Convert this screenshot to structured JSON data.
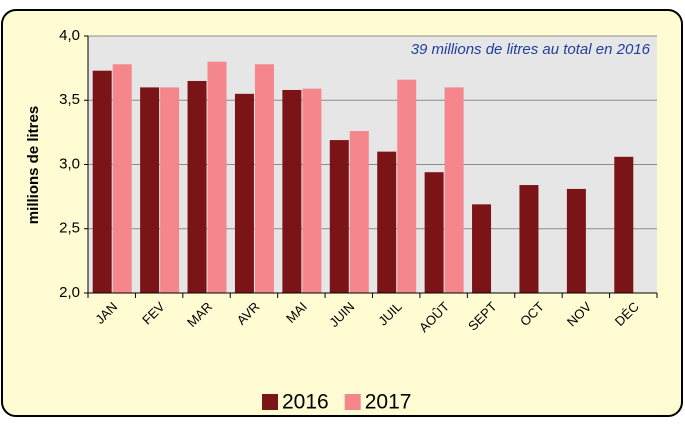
{
  "chart_data": {
    "type": "bar",
    "annotation": "39 millions de litres au total en 2016",
    "y_label": "millions de litres",
    "categories": [
      "JAN",
      "FEV",
      "MAR",
      "AVR",
      "MAI",
      "JUIN",
      "JUIL",
      "AOÛT",
      "SEPT",
      "OCT",
      "NOV",
      "DÉC"
    ],
    "series": [
      {
        "name": "2016",
        "color": "#7b1416",
        "values": [
          3.73,
          3.6,
          3.65,
          3.55,
          3.58,
          3.19,
          3.1,
          2.94,
          2.69,
          2.84,
          2.81,
          3.06
        ]
      },
      {
        "name": "2017",
        "color": "#f4868c",
        "values": [
          3.78,
          3.6,
          3.8,
          3.78,
          3.59,
          3.26,
          3.66,
          3.6,
          null,
          null,
          null,
          null
        ]
      }
    ],
    "ylim": [
      2,
      4
    ],
    "yticks": [
      {
        "value": 2,
        "label": "2,0"
      },
      {
        "value": 2.5,
        "label": "2,5"
      },
      {
        "value": 3,
        "label": "3,0"
      },
      {
        "value": 3.5,
        "label": "3,5"
      },
      {
        "value": 4,
        "label": "4,0"
      }
    ],
    "grid": true,
    "legend": "bottom"
  }
}
